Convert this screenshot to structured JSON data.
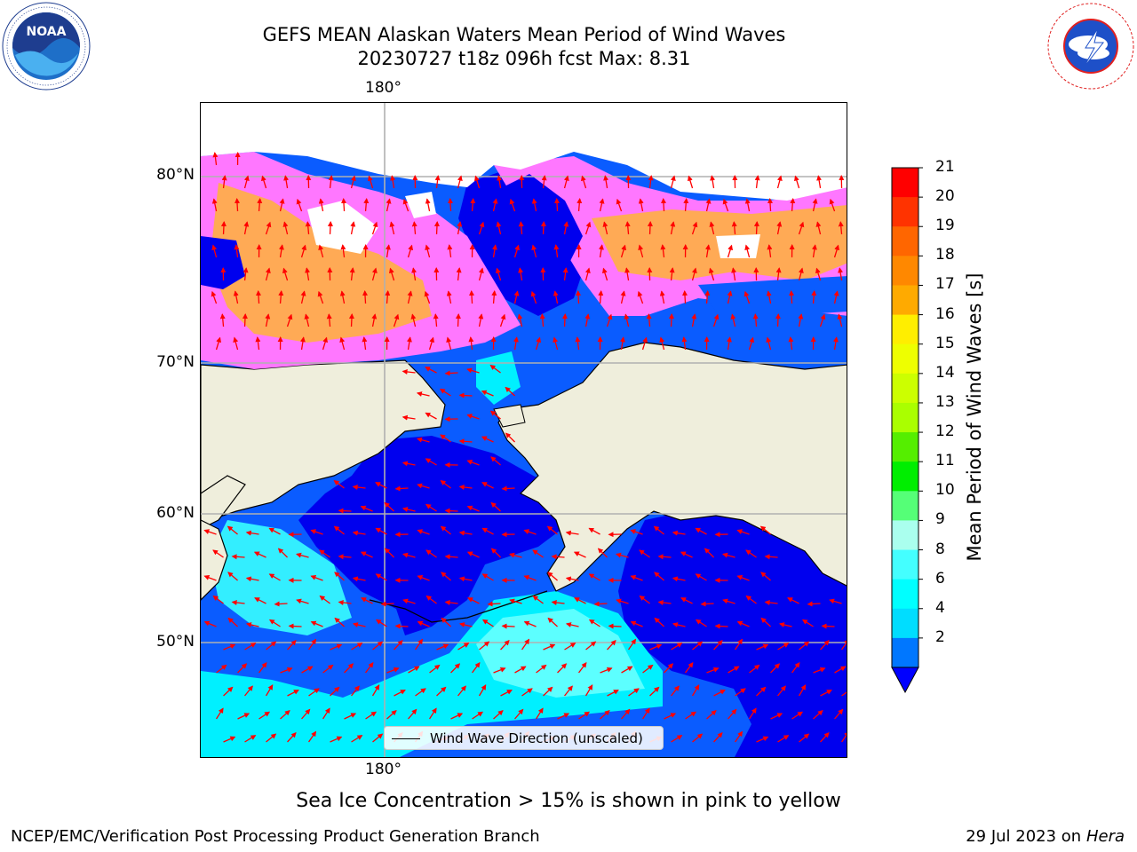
{
  "header": {
    "title_line1": "GEFS MEAN Alaskan Waters Mean Period of Wind Waves",
    "title_line2": "20230727 t18z 096h fcst   Max: 8.31"
  },
  "logos": {
    "left": {
      "name": "noaa-logo",
      "text": "NOAA",
      "ring_text": "NATIONAL OCEANIC AND ATMOSPHERIC ADMINISTRATION · U.S. DEPARTMENT OF COMMERCE"
    },
    "right": {
      "name": "nws-logo",
      "ring_text": "NATIONAL WEATHER SERVICE"
    }
  },
  "map": {
    "longitude_label_top": "180°",
    "longitude_label_bottom": "180°",
    "latitude_labels": [
      "80°N",
      "70°N",
      "60°N",
      "50°N"
    ],
    "legend_label": "Wind Wave Direction (unscaled)",
    "colors": {
      "land": "#efeedc",
      "ice_pink": "#ff77ff",
      "ice_orange": "#ffaa55",
      "arrow": "#ff0000",
      "gridline": "#b0b0b0"
    }
  },
  "colorbar": {
    "title": "Mean Period of Wind Waves [s]",
    "tick_labels": [
      "21",
      "20",
      "19",
      "18",
      "17",
      "16",
      "15",
      "14",
      "13",
      "12",
      "11",
      "10",
      "9",
      "8",
      "6",
      "4",
      "2"
    ],
    "bins_top_to_bottom": [
      "#ff0000",
      "#ff3300",
      "#ff6600",
      "#ff8800",
      "#ffaa00",
      "#ffee00",
      "#eeff00",
      "#ccff00",
      "#aaff00",
      "#55ee00",
      "#00ee00",
      "#55ff77",
      "#aaffee",
      "#44ffff",
      "#00ffff",
      "#00ddff",
      "#0077ff"
    ],
    "extend_color": "#0000ff"
  },
  "note": "Sea Ice Concentration > 15% is shown in pink to yellow",
  "footer": {
    "left": "NCEP/EMC/Verification Post Processing Product Generation Branch",
    "right_date": "29 Jul 2023 on ",
    "right_host": "Hera"
  }
}
